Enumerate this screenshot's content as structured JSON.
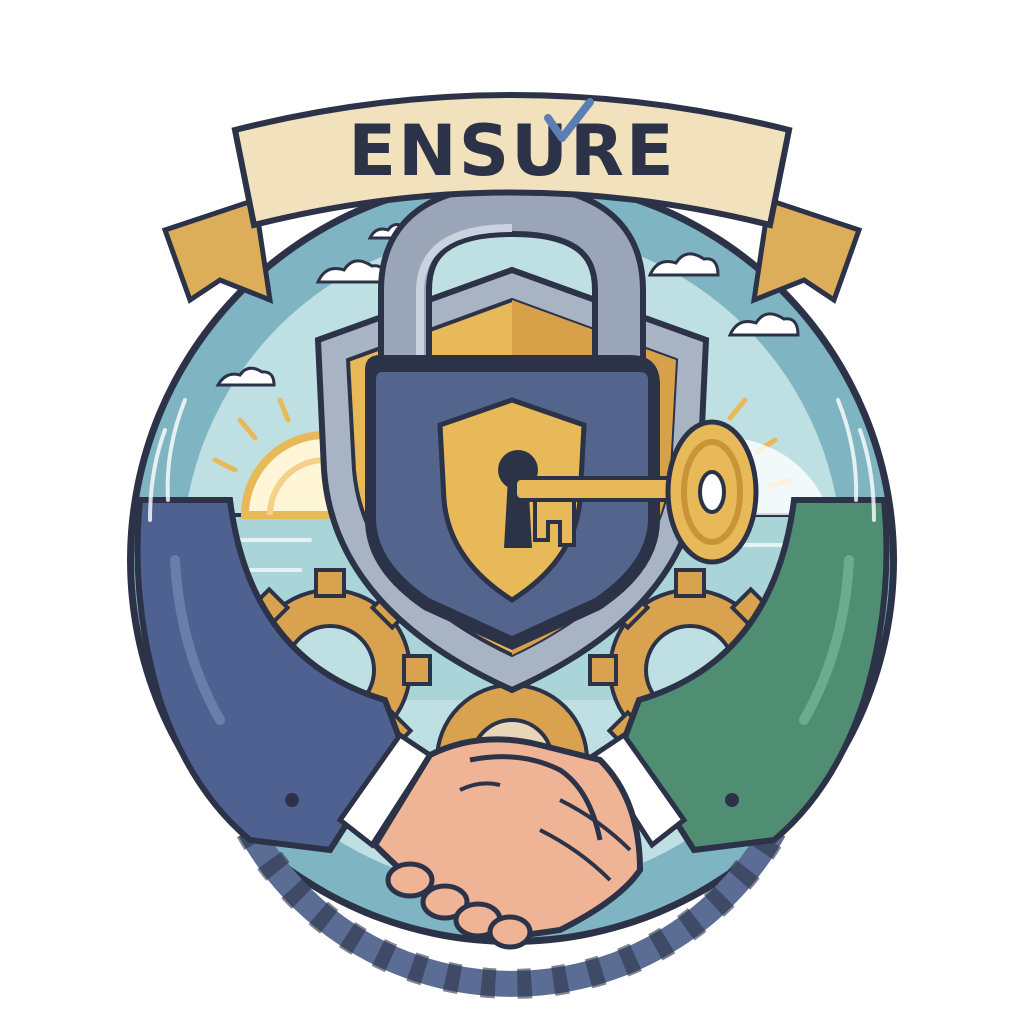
{
  "emblem": {
    "banner_text": "ENSURE",
    "palette": {
      "outline": "#2c3348",
      "banner": "#f1e2bd",
      "banner_fold": "#dcae5a",
      "sky": "#bfe0e3",
      "sea": "#a9d5d8",
      "teal_ring": "#7fb5c2",
      "shield_silver": "#a8b4c4",
      "gold": "#e8b959",
      "lock_body": "#53648d",
      "lock_shackle": "#9aa6b8",
      "sleeve_left": "#4e6190",
      "sleeve_right": "#4f8e72",
      "skin": "#efb496",
      "gear": "#d9a24e",
      "gear_dark": "#5b6c95"
    },
    "icons": [
      "banner-icon",
      "check-icon",
      "padlock-icon",
      "shield-icon",
      "key-icon",
      "gear-icon",
      "handshake-icon",
      "sun-icon",
      "cloud-icon"
    ]
  }
}
